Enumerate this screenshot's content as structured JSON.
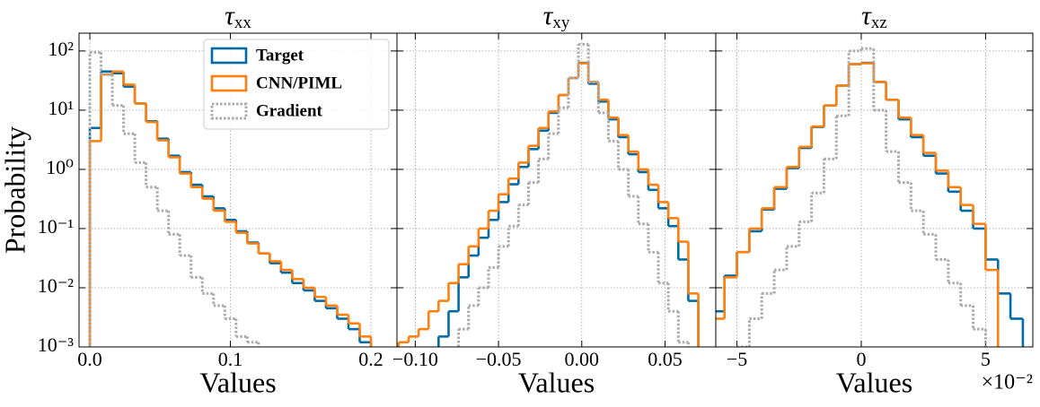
{
  "chart_data": [
    {
      "type": "histogram",
      "title": "τ",
      "title_sub": "xx",
      "xlabel": "Values",
      "ylabel": "Probability",
      "log_y": true,
      "grid": true,
      "legend": "upper right",
      "xlim": [
        -0.0077,
        0.2185
      ],
      "xticks": [
        {
          "value": 0,
          "label": "0.0"
        },
        0.1,
        0.2
      ],
      "ylim": [
        0.001,
        200
      ],
      "yticks": [
        {
          "value": 0.001,
          "label": "10⁻³"
        },
        {
          "value": 0.01,
          "label": "10⁻²"
        },
        {
          "value": 0.1,
          "label": "10⁻¹"
        },
        {
          "value": 1,
          "label": "10⁰"
        },
        {
          "value": 10,
          "label": "10¹"
        },
        {
          "value": 100,
          "label": "10²"
        }
      ],
      "bins": [
        0,
        0.008,
        0.016,
        0.024,
        0.032,
        0.04,
        0.048,
        0.056,
        0.064,
        0.072,
        0.08,
        0.088,
        0.096,
        0.104,
        0.112,
        0.12,
        0.128,
        0.136,
        0.144,
        0.152,
        0.16,
        0.168,
        0.176,
        0.184,
        0.192,
        0.2
      ],
      "series": [
        {
          "name": "Target",
          "color": "#006ba4",
          "linestyle": "solid",
          "values": [
            5,
            45,
            42,
            25,
            13,
            6.5,
            3.3,
            1.7,
            0.9,
            0.55,
            0.35,
            0.22,
            0.14,
            0.09,
            0.058,
            0.038,
            0.026,
            0.018,
            0.012,
            0.009,
            0.006,
            0.0045,
            0.003,
            0.002,
            0.0012
          ]
        },
        {
          "name": "CNN/PIML",
          "color": "#ff800e",
          "linestyle": "solid",
          "values": [
            3,
            40,
            45,
            27,
            13,
            6.3,
            3.1,
            1.6,
            0.85,
            0.5,
            0.32,
            0.2,
            0.13,
            0.085,
            0.056,
            0.038,
            0.028,
            0.02,
            0.014,
            0.01,
            0.007,
            0.005,
            0.0035,
            0.0025,
            0.0015
          ]
        },
        {
          "name": "Gradient",
          "color": "#ababab",
          "linestyle": "dotted",
          "values": [
            95,
            40,
            12,
            4,
            1.3,
            0.5,
            0.2,
            0.08,
            0.035,
            0.015,
            0.008,
            0.005,
            0.003,
            0.0015,
            0.0012,
            null,
            null,
            null,
            null,
            null,
            null,
            null,
            null,
            null,
            null
          ]
        }
      ]
    },
    {
      "type": "histogram",
      "title": "τ",
      "title_sub": "xy",
      "xlabel": "Values",
      "log_y": true,
      "grid": true,
      "xlim": [
        -0.111,
        0.0805
      ],
      "xticks": [
        {
          "value": -0.1,
          "label": "−0.10"
        },
        {
          "value": -0.05,
          "label": "−0.05"
        },
        {
          "value": 0,
          "label": "0.00"
        },
        {
          "value": 0.05,
          "label": "0.05"
        }
      ],
      "ylim": [
        0.001,
        200
      ],
      "yticks": [
        0.001,
        0.01,
        0.1,
        1,
        10,
        100
      ],
      "bins": [
        -0.11,
        -0.104,
        -0.098,
        -0.092,
        -0.086,
        -0.08,
        -0.074,
        -0.068,
        -0.062,
        -0.056,
        -0.05,
        -0.044,
        -0.038,
        -0.032,
        -0.026,
        -0.02,
        -0.014,
        -0.008,
        -0.002,
        0.004,
        0.01,
        0.016,
        0.022,
        0.028,
        0.034,
        0.04,
        0.046,
        0.052,
        0.058,
        0.064,
        0.07
      ],
      "series": [
        {
          "name": "Target",
          "color": "#006ba4",
          "linestyle": "solid",
          "values": [
            null,
            null,
            null,
            null,
            0.0015,
            0.004,
            0.015,
            0.035,
            0.07,
            0.14,
            0.28,
            0.56,
            1.1,
            2.2,
            4.5,
            9,
            18,
            35,
            63,
            28,
            14,
            7,
            3.5,
            1.8,
            0.9,
            0.45,
            0.22,
            0.11,
            0.03,
            0.006
          ]
        },
        {
          "name": "CNN/PIML",
          "color": "#ff800e",
          "linestyle": "solid",
          "values": [
            0.0012,
            0.0015,
            0.002,
            0.004,
            0.006,
            0.012,
            0.025,
            0.05,
            0.1,
            0.2,
            0.38,
            0.7,
            1.3,
            2.5,
            5,
            9.5,
            18,
            35,
            62,
            30,
            15,
            7.5,
            3.8,
            2,
            1,
            0.55,
            0.28,
            0.15,
            0.06,
            0.008
          ]
        },
        {
          "name": "Gradient",
          "color": "#ababab",
          "linestyle": "dotted",
          "values": [
            null,
            null,
            null,
            null,
            null,
            null,
            0.002,
            0.005,
            0.01,
            0.022,
            0.05,
            0.11,
            0.25,
            0.6,
            1.5,
            4,
            11,
            35,
            130,
            30,
            9,
            3,
            1,
            0.35,
            0.12,
            0.04,
            0.012,
            0.004,
            0.0012,
            null
          ]
        }
      ]
    },
    {
      "type": "histogram",
      "title": "τ",
      "title_sub": "xz",
      "xlabel": "Values",
      "x_offset": "×10⁻²",
      "log_y": true,
      "grid": true,
      "xlim": [
        -5.85,
        6.9
      ],
      "xticks": [
        {
          "value": -5,
          "label": "−5"
        },
        0,
        5
      ],
      "ylim": [
        0.001,
        200
      ],
      "yticks": [
        0.001,
        0.01,
        0.1,
        1,
        10,
        100
      ],
      "bins": [
        -6,
        -5.5,
        -5,
        -4.5,
        -4,
        -3.5,
        -3,
        -2.5,
        -2,
        -1.5,
        -1,
        -0.5,
        0,
        0.5,
        1,
        1.5,
        2,
        2.5,
        3,
        3.5,
        4,
        4.5,
        5,
        5.5,
        6,
        6.5,
        7
      ],
      "series": [
        {
          "name": "Target",
          "color": "#006ba4",
          "linestyle": "solid",
          "values": [
            0.004,
            0.016,
            0.04,
            0.09,
            0.21,
            0.47,
            1.05,
            2.3,
            5.2,
            12,
            26,
            60,
            63,
            30,
            15,
            7,
            3.5,
            1.7,
            0.85,
            0.42,
            0.2,
            0.1,
            0.03,
            0.008,
            0.003,
            null
          ]
        },
        {
          "name": "CNN/PIML",
          "color": "#ff800e",
          "linestyle": "solid",
          "values": [
            0.003,
            0.015,
            0.04,
            0.1,
            0.22,
            0.5,
            1.1,
            2.4,
            5.3,
            12,
            26,
            60,
            62,
            30,
            15,
            7.5,
            3.8,
            1.9,
            0.95,
            0.5,
            0.25,
            0.12,
            0.02,
            null,
            null,
            null
          ]
        },
        {
          "name": "Gradient",
          "color": "#ababab",
          "linestyle": "dotted",
          "values": [
            null,
            null,
            0.001,
            0.003,
            0.008,
            0.02,
            0.05,
            0.13,
            0.4,
            1.5,
            8,
            100,
            110,
            10,
            2,
            0.6,
            0.2,
            0.08,
            0.03,
            0.012,
            0.005,
            0.002,
            null,
            null,
            null,
            null
          ]
        }
      ]
    }
  ]
}
